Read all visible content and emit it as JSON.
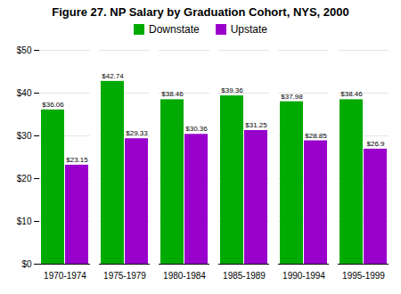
{
  "chart_data": {
    "type": "bar",
    "title": "Figure 27.  NP Salary by Graduation Cohort, NYS, 2000",
    "categories": [
      "1970-1974",
      "1975-1979",
      "1980-1984",
      "1985-1989",
      "1990-1994",
      "1995-1999"
    ],
    "series": [
      {
        "name": "Downstate",
        "color": "#00AA00",
        "values": [
          36.06,
          42.74,
          38.46,
          39.36,
          37.98,
          38.46
        ],
        "value_labels": [
          "$36.06",
          "$42.74",
          "$38.46",
          "$39.36",
          "$37.98",
          "$38.46"
        ]
      },
      {
        "name": "Upstate",
        "color": "#9900CC",
        "values": [
          23.15,
          29.33,
          30.36,
          31.25,
          28.85,
          26.9
        ],
        "value_labels": [
          "$23.15",
          "$29.33",
          "$30.36",
          "$31.25",
          "$28.85",
          "$26.9"
        ]
      }
    ],
    "ylim": [
      0,
      50
    ],
    "yticks": [
      {
        "value": 0,
        "label": "$0"
      },
      {
        "value": 10,
        "label": "$10"
      },
      {
        "value": 20,
        "label": "$20"
      },
      {
        "value": 30,
        "label": "$30"
      },
      {
        "value": 40,
        "label": "$40"
      },
      {
        "value": 50,
        "label": "$50"
      }
    ],
    "grid": true,
    "legend": "top",
    "data_labels": true
  }
}
